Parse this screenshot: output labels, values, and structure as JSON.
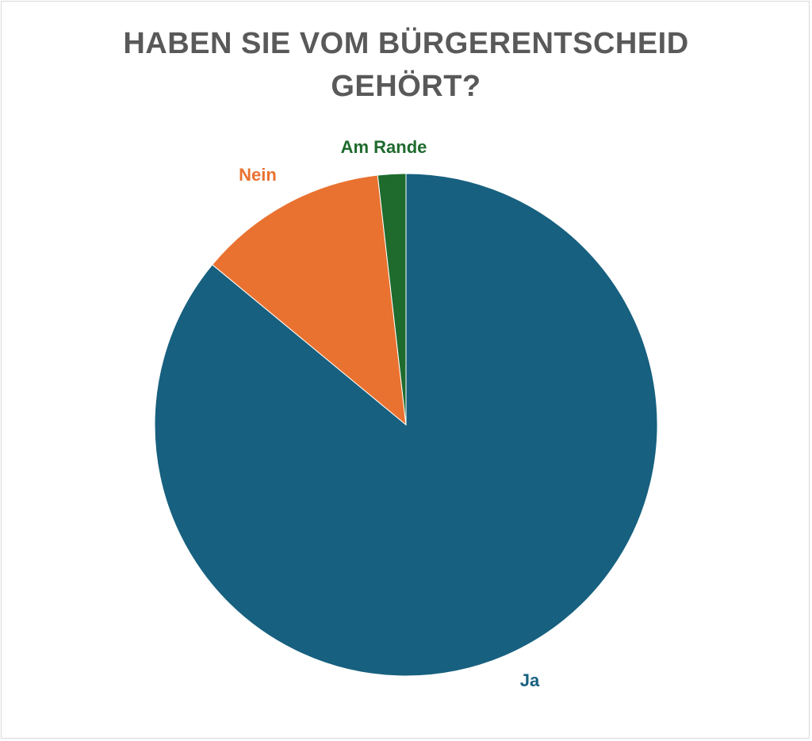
{
  "chart_data": {
    "type": "pie",
    "title_lines": [
      "HABEN SIE VOM BÜRGERENTSCHEID",
      "GEHÖRT?"
    ],
    "slices": [
      {
        "label": "Ja",
        "value": 86.0,
        "color": "#17607f"
      },
      {
        "label": "Nein",
        "value": 12.2,
        "color": "#e97230"
      },
      {
        "label": "Am Rande",
        "value": 1.8,
        "color": "#1e6b2d"
      }
    ],
    "start_angle_deg": 0,
    "direction": "clockwise",
    "legend": "none",
    "data_labels": "outside-category-name"
  }
}
